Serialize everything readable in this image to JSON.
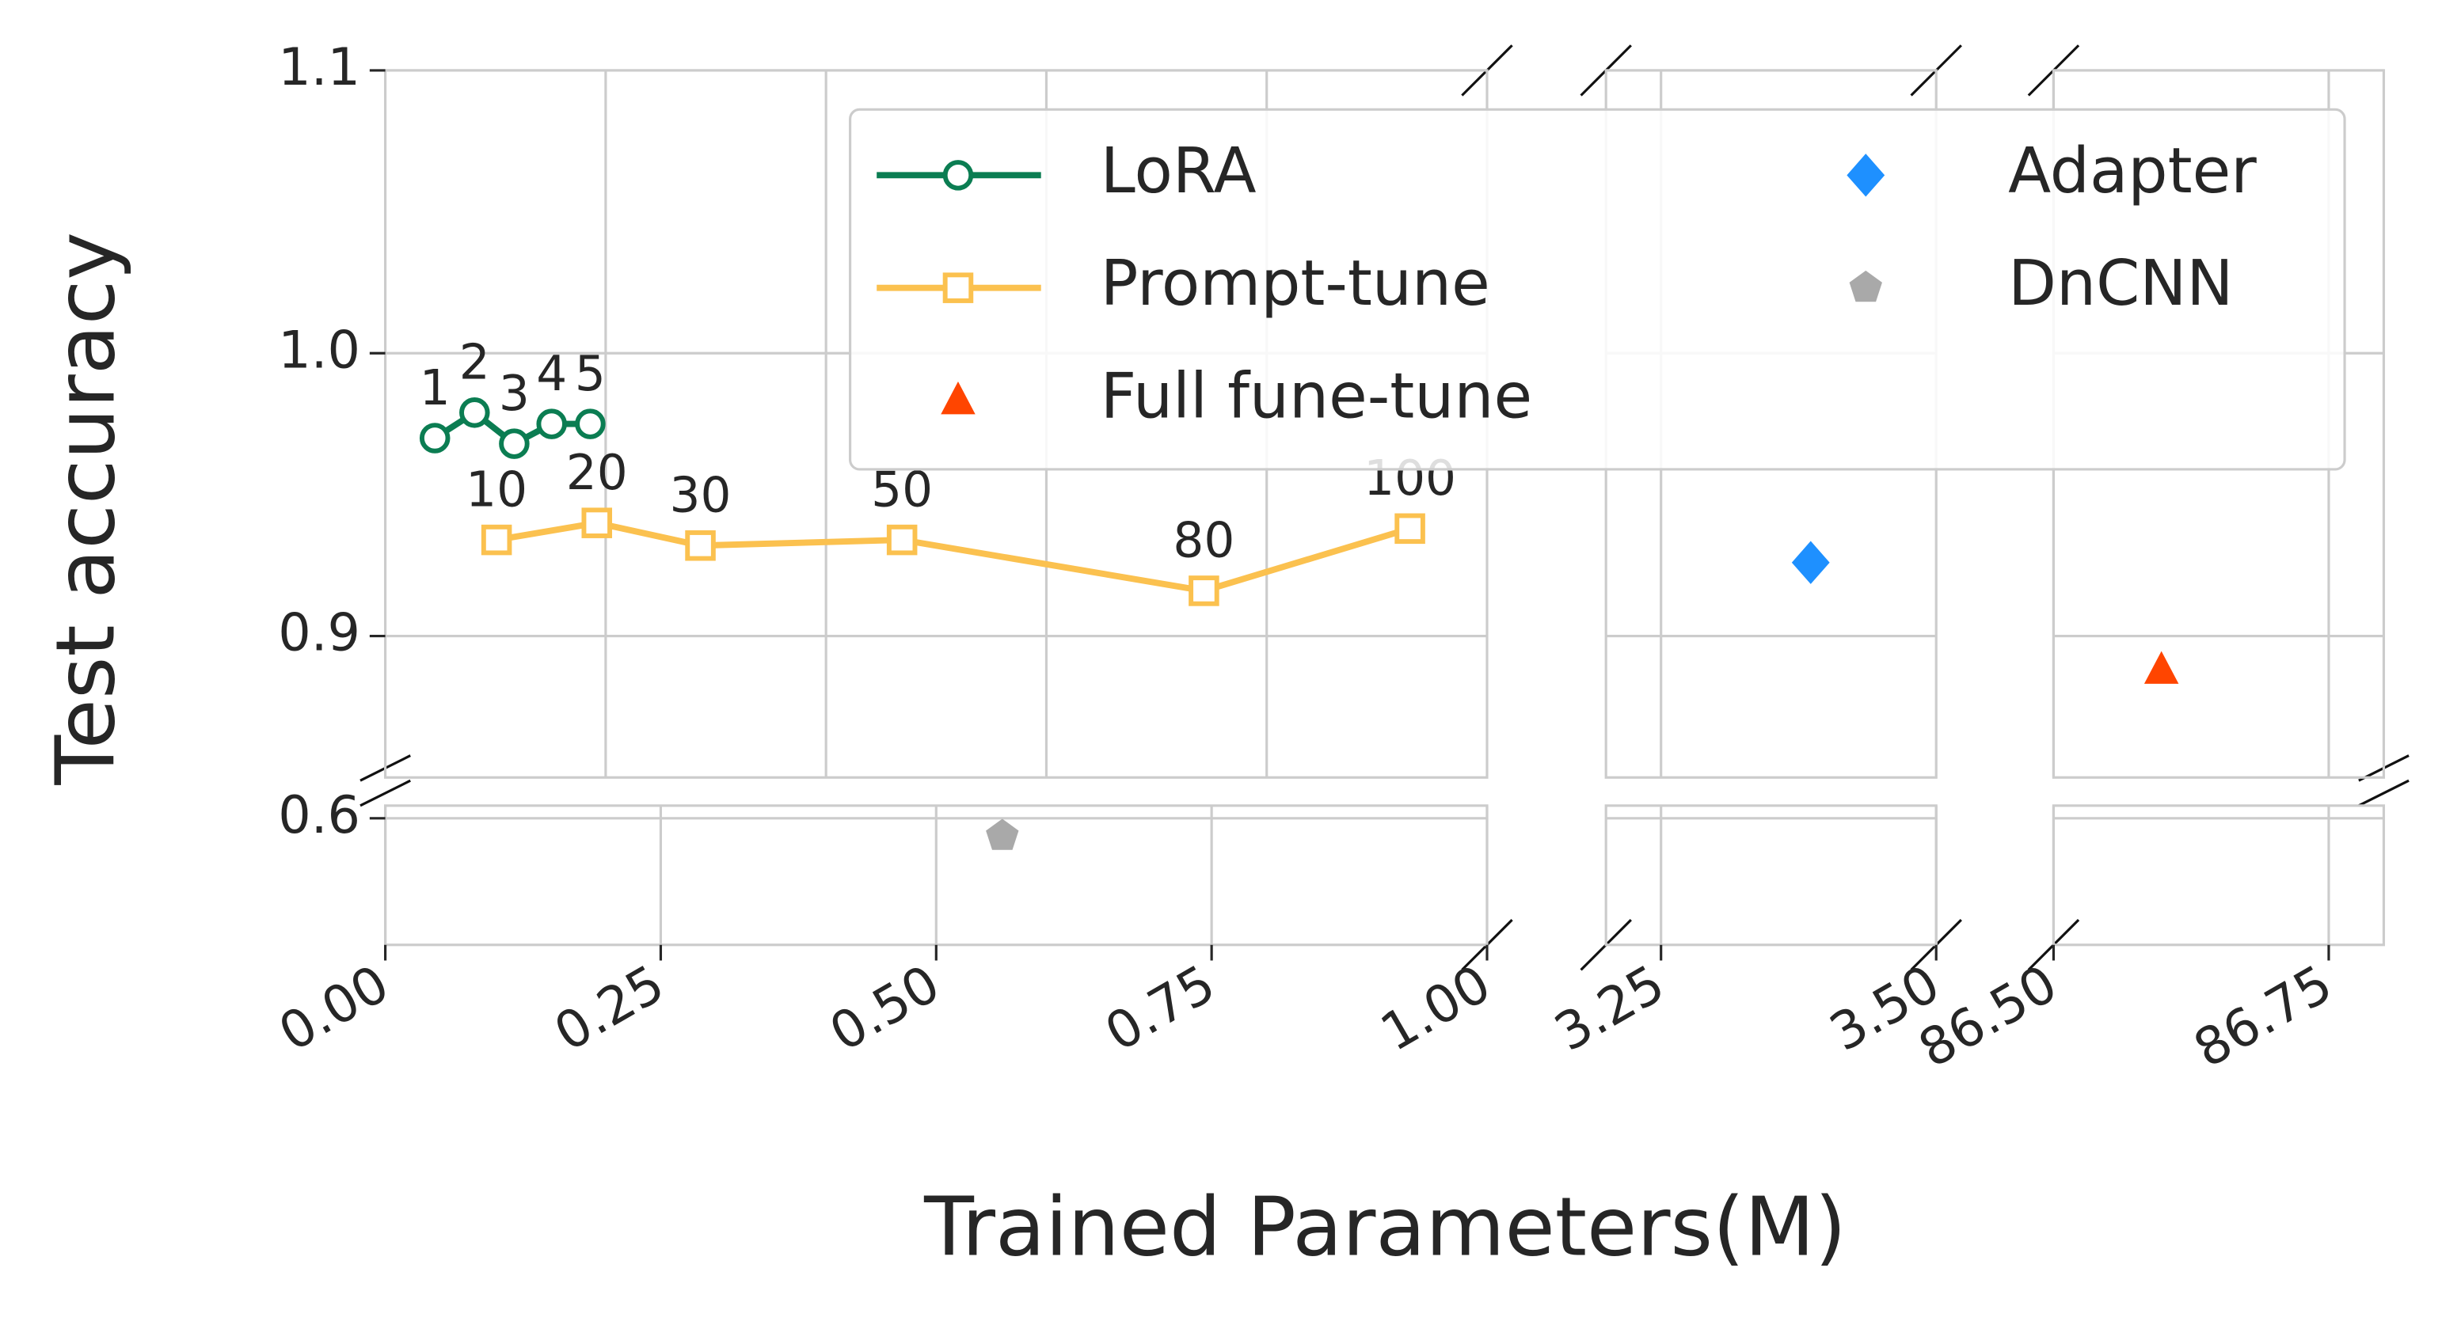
{
  "chart_data": {
    "type": "broken-axis-scatter",
    "xlabel": "Trained Parameters(M)",
    "ylabel": "Test accuracy",
    "grid": true,
    "x_segments": [
      {
        "xlim": [
          0,
          1
        ],
        "upper_xgrid": [
          0.2,
          0.4,
          0.6,
          0.8
        ],
        "xticks": [
          {
            "value": 0,
            "label": "0.00"
          },
          0.25,
          {
            "value": 0.5,
            "label": "0.50"
          },
          0.75,
          {
            "value": 1,
            "label": "1.00"
          }
        ]
      },
      {
        "xlim": [
          3.2,
          3.5
        ],
        "upper_xgrid": [
          3.25
        ],
        "xticks": [
          3.25,
          {
            "value": 3.5,
            "label": "3.50"
          }
        ]
      },
      {
        "xlim": [
          86.5,
          86.8
        ],
        "upper_xgrid": [
          86.5,
          86.75
        ],
        "xticks": [
          {
            "value": 86.5,
            "label": "86.50"
          },
          86.75
        ]
      }
    ],
    "y_segments": [
      {
        "ylim": [
          0.85,
          1.1
        ],
        "yticks": [
          0.9,
          {
            "value": 1.0,
            "label": "1.0"
          },
          1.1
        ]
      },
      {
        "ylim": [
          0.55,
          0.605
        ],
        "yticks": [
          0.6
        ]
      }
    ],
    "series": [
      {
        "name": "LoRA",
        "color": "#0b7d52",
        "marker": "circle",
        "line": true,
        "x": [
          0.045,
          0.081,
          0.117,
          0.151,
          0.186
        ],
        "values": [
          0.97,
          0.979,
          0.968,
          0.975,
          0.975
        ],
        "point_labels": [
          "1",
          "2",
          "3",
          "4",
          "5"
        ]
      },
      {
        "name": "Prompt-tune",
        "color": "#fbc14f",
        "marker": "square",
        "line": true,
        "x": [
          0.101,
          0.192,
          0.286,
          0.469,
          0.743,
          0.93
        ],
        "values": [
          0.934,
          0.94,
          0.932,
          0.934,
          0.916,
          0.938
        ],
        "point_labels": [
          "10",
          "20",
          "30",
          "50",
          "80",
          "100"
        ]
      },
      {
        "name": "Full fune-tune",
        "color": "#ff4500",
        "marker": "triangle",
        "line": false,
        "x": [
          86.598
        ],
        "values": [
          0.888
        ]
      },
      {
        "name": "Adapter",
        "color": "#1e90ff",
        "marker": "diamond",
        "line": false,
        "x": [
          3.386
        ],
        "values": [
          0.926
        ]
      },
      {
        "name": "DnCNN",
        "color": "#a9a9a9",
        "marker": "pentagon",
        "line": false,
        "x": [
          0.56
        ],
        "values": [
          0.593
        ]
      }
    ],
    "legend": {
      "loc": "upper right",
      "columns": 2
    }
  }
}
